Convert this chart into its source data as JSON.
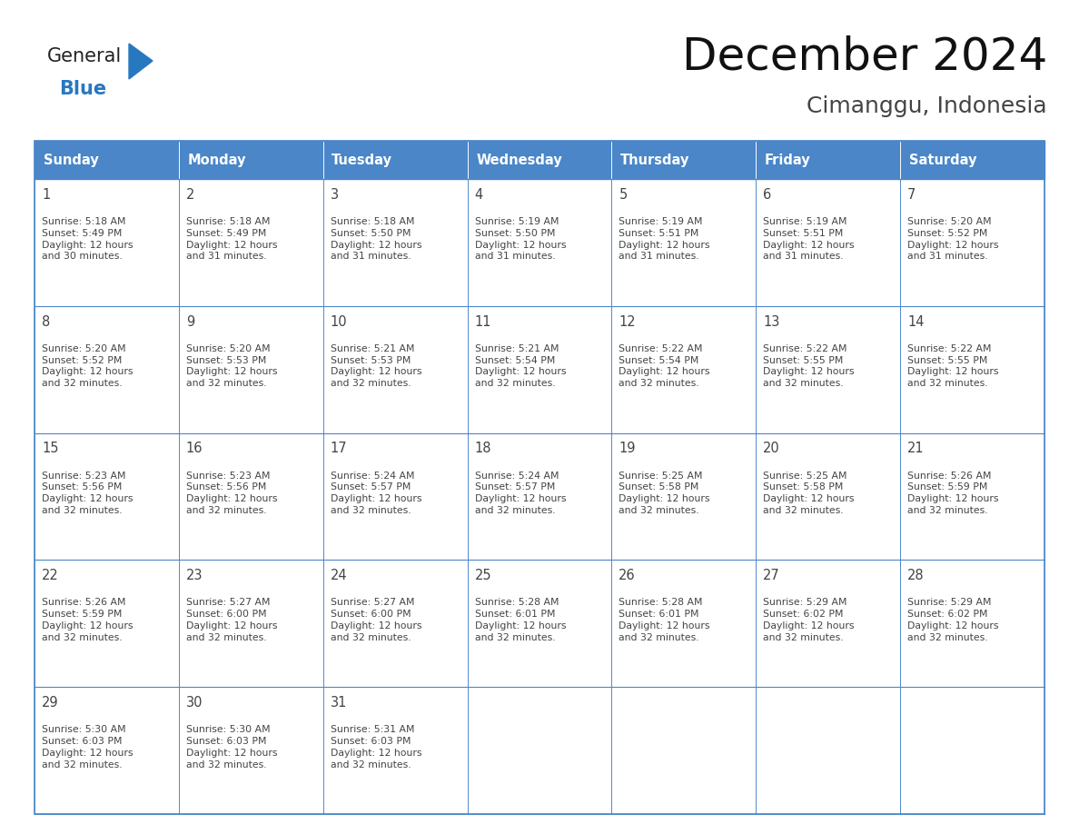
{
  "title": "December 2024",
  "subtitle": "Cimanggu, Indonesia",
  "header_bg_color": "#4a86c8",
  "header_text_color": "#ffffff",
  "cell_bg_color": "#ffffff",
  "cell_text_color": "#444444",
  "grid_color": "#4a86c8",
  "day_names": [
    "Sunday",
    "Monday",
    "Tuesday",
    "Wednesday",
    "Thursday",
    "Friday",
    "Saturday"
  ],
  "logo_general_color": "#222222",
  "logo_blue_color": "#2878c0",
  "weeks": [
    [
      {
        "day": 1,
        "sunrise": "5:18 AM",
        "sunset": "5:49 PM",
        "daylight": "12 hours\nand 30 minutes."
      },
      {
        "day": 2,
        "sunrise": "5:18 AM",
        "sunset": "5:49 PM",
        "daylight": "12 hours\nand 31 minutes."
      },
      {
        "day": 3,
        "sunrise": "5:18 AM",
        "sunset": "5:50 PM",
        "daylight": "12 hours\nand 31 minutes."
      },
      {
        "day": 4,
        "sunrise": "5:19 AM",
        "sunset": "5:50 PM",
        "daylight": "12 hours\nand 31 minutes."
      },
      {
        "day": 5,
        "sunrise": "5:19 AM",
        "sunset": "5:51 PM",
        "daylight": "12 hours\nand 31 minutes."
      },
      {
        "day": 6,
        "sunrise": "5:19 AM",
        "sunset": "5:51 PM",
        "daylight": "12 hours\nand 31 minutes."
      },
      {
        "day": 7,
        "sunrise": "5:20 AM",
        "sunset": "5:52 PM",
        "daylight": "12 hours\nand 31 minutes."
      }
    ],
    [
      {
        "day": 8,
        "sunrise": "5:20 AM",
        "sunset": "5:52 PM",
        "daylight": "12 hours\nand 32 minutes."
      },
      {
        "day": 9,
        "sunrise": "5:20 AM",
        "sunset": "5:53 PM",
        "daylight": "12 hours\nand 32 minutes."
      },
      {
        "day": 10,
        "sunrise": "5:21 AM",
        "sunset": "5:53 PM",
        "daylight": "12 hours\nand 32 minutes."
      },
      {
        "day": 11,
        "sunrise": "5:21 AM",
        "sunset": "5:54 PM",
        "daylight": "12 hours\nand 32 minutes."
      },
      {
        "day": 12,
        "sunrise": "5:22 AM",
        "sunset": "5:54 PM",
        "daylight": "12 hours\nand 32 minutes."
      },
      {
        "day": 13,
        "sunrise": "5:22 AM",
        "sunset": "5:55 PM",
        "daylight": "12 hours\nand 32 minutes."
      },
      {
        "day": 14,
        "sunrise": "5:22 AM",
        "sunset": "5:55 PM",
        "daylight": "12 hours\nand 32 minutes."
      }
    ],
    [
      {
        "day": 15,
        "sunrise": "5:23 AM",
        "sunset": "5:56 PM",
        "daylight": "12 hours\nand 32 minutes."
      },
      {
        "day": 16,
        "sunrise": "5:23 AM",
        "sunset": "5:56 PM",
        "daylight": "12 hours\nand 32 minutes."
      },
      {
        "day": 17,
        "sunrise": "5:24 AM",
        "sunset": "5:57 PM",
        "daylight": "12 hours\nand 32 minutes."
      },
      {
        "day": 18,
        "sunrise": "5:24 AM",
        "sunset": "5:57 PM",
        "daylight": "12 hours\nand 32 minutes."
      },
      {
        "day": 19,
        "sunrise": "5:25 AM",
        "sunset": "5:58 PM",
        "daylight": "12 hours\nand 32 minutes."
      },
      {
        "day": 20,
        "sunrise": "5:25 AM",
        "sunset": "5:58 PM",
        "daylight": "12 hours\nand 32 minutes."
      },
      {
        "day": 21,
        "sunrise": "5:26 AM",
        "sunset": "5:59 PM",
        "daylight": "12 hours\nand 32 minutes."
      }
    ],
    [
      {
        "day": 22,
        "sunrise": "5:26 AM",
        "sunset": "5:59 PM",
        "daylight": "12 hours\nand 32 minutes."
      },
      {
        "day": 23,
        "sunrise": "5:27 AM",
        "sunset": "6:00 PM",
        "daylight": "12 hours\nand 32 minutes."
      },
      {
        "day": 24,
        "sunrise": "5:27 AM",
        "sunset": "6:00 PM",
        "daylight": "12 hours\nand 32 minutes."
      },
      {
        "day": 25,
        "sunrise": "5:28 AM",
        "sunset": "6:01 PM",
        "daylight": "12 hours\nand 32 minutes."
      },
      {
        "day": 26,
        "sunrise": "5:28 AM",
        "sunset": "6:01 PM",
        "daylight": "12 hours\nand 32 minutes."
      },
      {
        "day": 27,
        "sunrise": "5:29 AM",
        "sunset": "6:02 PM",
        "daylight": "12 hours\nand 32 minutes."
      },
      {
        "day": 28,
        "sunrise": "5:29 AM",
        "sunset": "6:02 PM",
        "daylight": "12 hours\nand 32 minutes."
      }
    ],
    [
      {
        "day": 29,
        "sunrise": "5:30 AM",
        "sunset": "6:03 PM",
        "daylight": "12 hours\nand 32 minutes."
      },
      {
        "day": 30,
        "sunrise": "5:30 AM",
        "sunset": "6:03 PM",
        "daylight": "12 hours\nand 32 minutes."
      },
      {
        "day": 31,
        "sunrise": "5:31 AM",
        "sunset": "6:03 PM",
        "daylight": "12 hours\nand 32 minutes."
      },
      null,
      null,
      null,
      null
    ]
  ],
  "fig_width": 11.88,
  "fig_height": 9.18,
  "fig_dpi": 100
}
